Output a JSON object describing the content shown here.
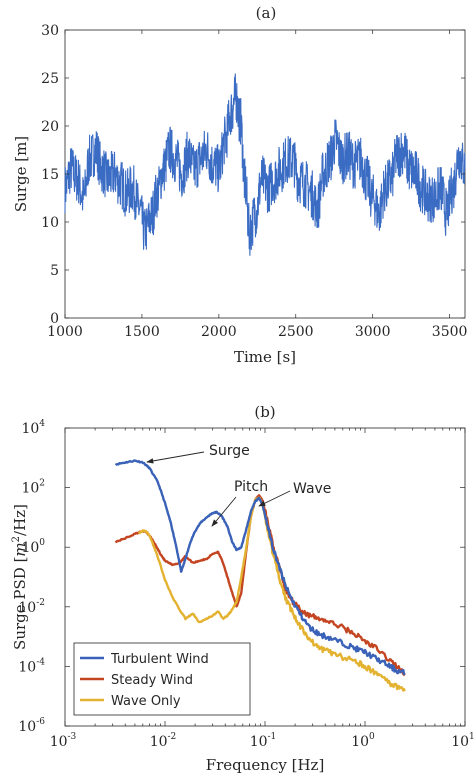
{
  "chart_data": [
    {
      "type": "line",
      "title": "(a)",
      "xlabel": "Time [s]",
      "ylabel": "Surge [m]",
      "xlim": [
        1000,
        3600
      ],
      "ylim": [
        0,
        30
      ],
      "xticks": [
        "1000",
        "1500",
        "2000",
        "2500",
        "3000",
        "3500"
      ],
      "yticks": [
        "0",
        "5",
        "10",
        "15",
        "20",
        "25",
        "30"
      ],
      "grid": false,
      "series": [
        {
          "color": "#3b6cc4",
          "x": [
            1000,
            1040,
            1080,
            1120,
            1160,
            1200,
            1240,
            1280,
            1320,
            1360,
            1400,
            1440,
            1480,
            1520,
            1560,
            1600,
            1640,
            1680,
            1720,
            1760,
            1800,
            1840,
            1880,
            1920,
            1960,
            2000,
            2040,
            2080,
            2110,
            2140,
            2170,
            2200,
            2240,
            2280,
            2320,
            2360,
            2400,
            2440,
            2480,
            2520,
            2560,
            2600,
            2640,
            2680,
            2720,
            2760,
            2800,
            2840,
            2880,
            2920,
            2960,
            3000,
            3040,
            3080,
            3120,
            3160,
            3200,
            3240,
            3280,
            3320,
            3360,
            3400,
            3440,
            3480,
            3520,
            3560,
            3600
          ],
          "y": [
            13.5,
            15.5,
            14.5,
            12.5,
            16.5,
            17.5,
            15.5,
            14.5,
            15.0,
            14.0,
            13.0,
            13.5,
            11.5,
            9.0,
            10.5,
            13.0,
            15.5,
            17.5,
            16.5,
            15.0,
            17.0,
            15.5,
            16.5,
            17.5,
            16.0,
            15.5,
            18.5,
            21.5,
            23.0,
            20.5,
            14.0,
            9.0,
            11.0,
            14.5,
            13.5,
            14.5,
            15.5,
            16.5,
            16.5,
            14.5,
            14.0,
            13.0,
            11.5,
            15.0,
            16.5,
            18.5,
            16.5,
            17.0,
            16.0,
            16.5,
            14.5,
            12.5,
            11.0,
            13.5,
            14.5,
            17.0,
            17.5,
            15.5,
            15.0,
            13.5,
            12.5,
            12.5,
            13.5,
            11.0,
            13.5,
            17.0,
            15.5
          ]
        }
      ]
    },
    {
      "type": "line",
      "title": "(b)",
      "xlabel": "Frequency [Hz]",
      "ylabel": "Surge PSD [m²/Hz]",
      "xscale": "log",
      "yscale": "log",
      "xlim": [
        0.001,
        10
      ],
      "ylim": [
        1e-06,
        10000
      ],
      "xticks": [
        "10",
        "10",
        "10",
        "10",
        "10"
      ],
      "xtick_exponents": [
        "-3",
        "-2",
        "-1",
        "0",
        "1"
      ],
      "yticks": [
        "10",
        "10",
        "10",
        "10",
        "10",
        "10"
      ],
      "ytick_exponents": [
        "-6",
        "-4",
        "-2",
        "0",
        "2",
        "4"
      ],
      "grid": false,
      "legend_position": "bottom-left",
      "annotations": [
        {
          "text": "Surge",
          "x": 0.0055,
          "y": 900
        },
        {
          "text": "Pitch",
          "x": 0.03,
          "y": 20
        },
        {
          "text": "Wave",
          "x": 0.09,
          "y": 60
        }
      ],
      "series": [
        {
          "name": "Turbulent Wind",
          "color": "#3a62b8",
          "x": [
            0.0032,
            0.004,
            0.005,
            0.006,
            0.007,
            0.0085,
            0.01,
            0.0115,
            0.013,
            0.0145,
            0.016,
            0.018,
            0.02,
            0.023,
            0.027,
            0.03,
            0.033,
            0.037,
            0.042,
            0.047,
            0.052,
            0.058,
            0.065,
            0.072,
            0.08,
            0.088,
            0.095,
            0.105,
            0.12,
            0.14,
            0.16,
            0.19,
            0.23,
            0.28,
            0.35,
            0.45,
            0.6,
            0.8,
            1.0,
            1.3,
            1.7,
            2.1,
            2.5
          ],
          "y": [
            600,
            700,
            800,
            700,
            450,
            150,
            30,
            6,
            1.0,
            0.15,
            0.4,
            1.5,
            3.5,
            7,
            11,
            14,
            15,
            11,
            5,
            1.5,
            0.8,
            1.0,
            4,
            15,
            35,
            45,
            25,
            6,
            1.0,
            0.2,
            0.05,
            0.015,
            0.005,
            0.002,
            0.0012,
            0.0009,
            0.0006,
            0.0004,
            0.0003,
            0.00018,
            0.00011,
            7e-05,
            6e-05
          ]
        },
        {
          "name": "Steady Wind",
          "color": "#c44522",
          "x": [
            0.0032,
            0.004,
            0.005,
            0.006,
            0.0065,
            0.007,
            0.008,
            0.009,
            0.01,
            0.012,
            0.014,
            0.016,
            0.019,
            0.022,
            0.026,
            0.03,
            0.034,
            0.038,
            0.042,
            0.047,
            0.052,
            0.058,
            0.065,
            0.072,
            0.08,
            0.088,
            0.095,
            0.105,
            0.12,
            0.14,
            0.16,
            0.19,
            0.23,
            0.28,
            0.35,
            0.45,
            0.6,
            0.8,
            1.0,
            1.3,
            1.7,
            2.1,
            2.5
          ],
          "y": [
            1.5,
            2.0,
            2.8,
            3.5,
            3.2,
            2.5,
            1.2,
            0.6,
            0.35,
            0.25,
            0.3,
            0.5,
            0.3,
            0.35,
            0.4,
            0.6,
            0.7,
            0.3,
            0.1,
            0.03,
            0.01,
            0.03,
            0.8,
            10,
            40,
            55,
            35,
            8,
            1.2,
            0.2,
            0.04,
            0.015,
            0.008,
            0.005,
            0.004,
            0.003,
            0.002,
            0.0012,
            0.0007,
            0.0004,
            0.00018,
            0.0001,
            5e-05
          ]
        },
        {
          "name": "Wave Only",
          "color": "#e4b231",
          "x": [
            0.0055,
            0.006,
            0.0065,
            0.007,
            0.008,
            0.009,
            0.01,
            0.012,
            0.014,
            0.016,
            0.019,
            0.022,
            0.026,
            0.03,
            0.034,
            0.038,
            0.042,
            0.047,
            0.052,
            0.058,
            0.065,
            0.072,
            0.08,
            0.088,
            0.095,
            0.105,
            0.12,
            0.14,
            0.16,
            0.19,
            0.23,
            0.28,
            0.35,
            0.45,
            0.6,
            0.8,
            1.0,
            1.3,
            1.7,
            2.1,
            2.5
          ],
          "y": [
            3.0,
            3.5,
            3.3,
            2.5,
            0.8,
            0.25,
            0.08,
            0.02,
            0.008,
            0.004,
            0.006,
            0.003,
            0.004,
            0.005,
            0.007,
            0.004,
            0.005,
            0.008,
            0.015,
            0.1,
            1.0,
            10,
            40,
            45,
            25,
            5,
            0.6,
            0.08,
            0.02,
            0.006,
            0.002,
            0.0008,
            0.0004,
            0.0003,
            0.0002,
            0.00015,
            0.0001,
            6e-05,
            3e-05,
            2e-05,
            1.5e-05
          ]
        }
      ]
    }
  ]
}
